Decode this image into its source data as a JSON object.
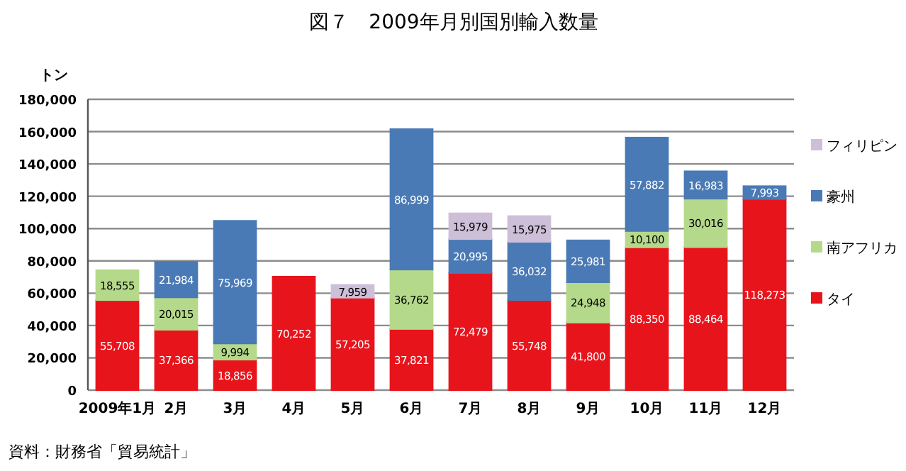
{
  "chart_data": {
    "type": "bar",
    "stacked": true,
    "title": "図７　2009年月別国別輸入数量",
    "ylabel": "トン",
    "annotations": [
      "資料：財務省「貿易統計」"
    ],
    "categories": [
      "2009年1月",
      "2月",
      "3月",
      "4月",
      "5月",
      "6月",
      "7月",
      "8月",
      "9月",
      "10月",
      "11月",
      "12月"
    ],
    "series": [
      {
        "name": "タイ",
        "color": "#e8141c",
        "values": [
          55708,
          37366,
          18856,
          70252,
          57205,
          37821,
          72479,
          55748,
          41800,
          88350,
          88464,
          118273
        ],
        "value_labels": [
          "55,708",
          "37,366",
          "18,856",
          "70,252",
          "57,205",
          "37,821",
          "72,479",
          "55,748",
          "41,800",
          "88,350",
          "88,464",
          "118,273"
        ]
      },
      {
        "name": "南アフリカ",
        "color": "#b5d98a",
        "values": [
          18555,
          20015,
          9994,
          null,
          null,
          36762,
          null,
          null,
          24948,
          10100,
          30016,
          null
        ],
        "value_labels": [
          "18,555",
          "20,015",
          "9,994",
          null,
          null,
          "36,762",
          null,
          null,
          "24,948",
          "10,100",
          "30,016",
          null
        ]
      },
      {
        "name": "豪州",
        "color": "#4a7ab5",
        "values": [
          null,
          21984,
          75969,
          null,
          null,
          86999,
          20995,
          36032,
          25981,
          57882,
          16983,
          7993
        ],
        "value_labels": [
          null,
          "21,984",
          "75,969",
          null,
          null,
          "86,999",
          "20,995",
          "36,032",
          "25,981",
          "57,882",
          "16,983",
          "7,993"
        ]
      },
      {
        "name": "フィリピン",
        "color": "#cdbfd8",
        "values": [
          null,
          null,
          null,
          null,
          7959,
          null,
          15979,
          15975,
          null,
          null,
          null,
          null
        ],
        "value_labels": [
          null,
          null,
          null,
          null,
          "7,959",
          null,
          "15,979",
          "15,975",
          null,
          null,
          null,
          null
        ]
      }
    ],
    "ylim": [
      0,
      180000
    ],
    "yticks": [
      0,
      {
        "value": 20000,
        "label": "20,000"
      },
      {
        "value": 40000,
        "label": "40,000"
      },
      {
        "value": 60000,
        "label": "60,000"
      },
      {
        "value": 80000,
        "label": "80,000"
      },
      {
        "value": 100000,
        "label": "100,000"
      },
      {
        "value": 120000,
        "label": "120,000"
      },
      {
        "value": 140000,
        "label": "140,000"
      },
      {
        "value": 160000,
        "label": "160,000"
      },
      {
        "value": 180000,
        "label": "180,000"
      }
    ],
    "grid": "y",
    "legend": "right"
  }
}
